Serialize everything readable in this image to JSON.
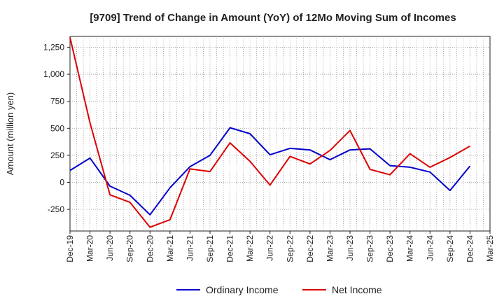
{
  "chart_data": {
    "type": "line",
    "title": "[9709]  Trend of Change in Amount (YoY) of 12Mo Moving Sum of Incomes",
    "xlabel": "",
    "ylabel": "Amount (million yen)",
    "ylim": [
      -450,
      1350
    ],
    "y_ticks": [
      -250,
      0,
      250,
      500,
      750,
      1000,
      1250
    ],
    "y_tick_labels": [
      "-250",
      "0",
      "250",
      "500",
      "750",
      "1,000",
      "1,250"
    ],
    "x_tick_labels": [
      "Dec-19",
      "Mar-20",
      "Jun-20",
      "Sep-20",
      "Dec-20",
      "Mar-21",
      "Jun-21",
      "Sep-21",
      "Dec-21",
      "Mar-22",
      "Jun-22",
      "Sep-22",
      "Dec-22",
      "Mar-23",
      "Jun-23",
      "Sep-23",
      "Dec-23",
      "Mar-24",
      "Jun-24",
      "Sep-24",
      "Dec-24",
      "Mar-25"
    ],
    "categories": [
      "Dec-19",
      "Mar-20",
      "Jun-20",
      "Sep-20",
      "Dec-20",
      "Mar-21",
      "Jun-21",
      "Sep-21",
      "Dec-21",
      "Mar-22",
      "Jun-22",
      "Sep-22",
      "Dec-22",
      "Mar-23",
      "Jun-23",
      "Sep-23",
      "Dec-23",
      "Mar-24",
      "Jun-24",
      "Sep-24",
      "Dec-24"
    ],
    "grid": true,
    "legend_position": "bottom-center",
    "series": [
      {
        "name": "Ordinary Income",
        "color": "#0000cc",
        "values": [
          110,
          225,
          -35,
          -120,
          -300,
          -50,
          145,
          250,
          505,
          450,
          255,
          315,
          300,
          210,
          300,
          310,
          155,
          140,
          95,
          -75,
          150
        ]
      },
      {
        "name": "Net Income",
        "color": "#dd0000",
        "values": [
          1340,
          550,
          -115,
          -185,
          -415,
          -345,
          125,
          100,
          365,
          195,
          -25,
          240,
          170,
          295,
          480,
          120,
          70,
          265,
          140,
          230,
          335
        ]
      }
    ]
  }
}
